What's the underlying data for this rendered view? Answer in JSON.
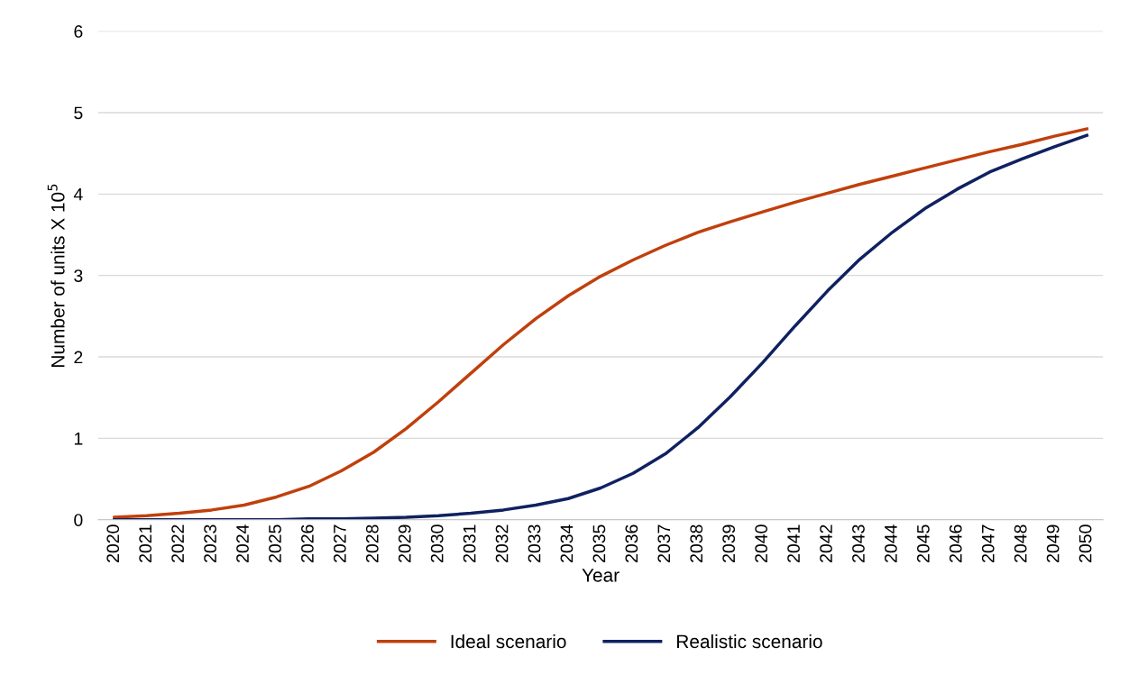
{
  "chart_data": {
    "type": "line",
    "xlabel": "Year",
    "ylabel": "Number of units X 10$^{5}$",
    "categories": [
      "2020",
      "2021",
      "2022",
      "2023",
      "2024",
      "2025",
      "2026",
      "2027",
      "2028",
      "2029",
      "2030",
      "2031",
      "2032",
      "2033",
      "2034",
      "2035",
      "2036",
      "2037",
      "2038",
      "2039",
      "2040",
      "2041",
      "2042",
      "2043",
      "2044",
      "2045",
      "2046",
      "2047",
      "2048",
      "2049",
      "2050"
    ],
    "series": [
      {
        "name": "Ideal scenario",
        "color": "#c0400c",
        "values": [
          0.03,
          0.05,
          0.08,
          0.12,
          0.18,
          0.28,
          0.41,
          0.6,
          0.83,
          1.12,
          1.45,
          1.8,
          2.15,
          2.47,
          2.75,
          2.99,
          3.19,
          3.37,
          3.53,
          3.66,
          3.78,
          3.9,
          4.01,
          4.12,
          4.22,
          4.32,
          4.42,
          4.52,
          4.61,
          4.71,
          4.8
        ]
      },
      {
        "name": "Realistic scenario",
        "color": "#0f2160",
        "values": [
          0,
          0,
          0,
          0,
          0,
          0,
          0.01,
          0.01,
          0.02,
          0.03,
          0.05,
          0.08,
          0.12,
          0.18,
          0.26,
          0.39,
          0.57,
          0.81,
          1.13,
          1.51,
          1.93,
          2.38,
          2.81,
          3.2,
          3.53,
          3.82,
          4.06,
          4.27,
          4.43,
          4.58,
          4.72
        ]
      }
    ],
    "ylim": [
      0,
      6
    ],
    "yticks": [
      0,
      1,
      2,
      3,
      4,
      5,
      6
    ],
    "grid": "y",
    "legend": "bottom",
    "marker": "none",
    "line_style": "solid"
  }
}
